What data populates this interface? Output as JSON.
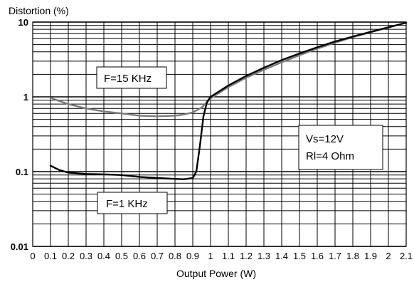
{
  "chart_data": {
    "type": "line",
    "title": "",
    "ylabel": "Distortion (%)",
    "xlabel": "Output Power (W)",
    "y_scale": "log",
    "ylim": [
      0.01,
      10
    ],
    "xlim": [
      0,
      2.1
    ],
    "grid": true,
    "x_ticks": [
      "0",
      "0.1",
      "0.2",
      "0.3",
      "0.4",
      "0.5",
      "0.6",
      "0.7",
      "0.8",
      "0.9",
      "1",
      "1.1",
      "1.2",
      "1.3",
      "1.4",
      "1.5",
      "1.6",
      "1.7",
      "1.8",
      "1.9",
      "2",
      "2.1"
    ],
    "y_ticks": [
      "0.01",
      "0.1",
      "1",
      "10"
    ],
    "series": [
      {
        "name": "F=15 KHz",
        "color": "#7a7a7a",
        "x": [
          0.1,
          0.2,
          0.3,
          0.4,
          0.5,
          0.6,
          0.7,
          0.8,
          0.85,
          0.9,
          0.95,
          1.0,
          1.1,
          1.2,
          1.3,
          1.4,
          1.5,
          1.6,
          1.7,
          1.8,
          1.9,
          2.0,
          2.1
        ],
        "y": [
          0.97,
          0.8,
          0.7,
          0.64,
          0.6,
          0.56,
          0.55,
          0.56,
          0.58,
          0.62,
          0.72,
          0.95,
          1.35,
          1.8,
          2.3,
          2.9,
          3.6,
          4.4,
          5.3,
          6.3,
          7.3,
          8.5,
          9.8
        ]
      },
      {
        "name": "F=1 KHz",
        "color": "#000000",
        "x": [
          0.1,
          0.15,
          0.2,
          0.3,
          0.4,
          0.5,
          0.6,
          0.7,
          0.8,
          0.85,
          0.9,
          0.92,
          0.94,
          0.96,
          0.98,
          1.0,
          1.1,
          1.2,
          1.3,
          1.4,
          1.5,
          1.6,
          1.7,
          1.8,
          1.9,
          2.0,
          2.1
        ],
        "y": [
          0.12,
          0.105,
          0.097,
          0.093,
          0.092,
          0.09,
          0.085,
          0.082,
          0.08,
          0.079,
          0.082,
          0.1,
          0.22,
          0.55,
          0.85,
          1.0,
          1.42,
          1.9,
          2.45,
          3.1,
          3.8,
          4.6,
          5.5,
          6.4,
          7.4,
          8.5,
          9.8
        ]
      }
    ],
    "annotations": [
      "F=15 KHz",
      "F=1 KHz",
      "Vs=12V",
      "Rl=4 Ohm"
    ]
  }
}
